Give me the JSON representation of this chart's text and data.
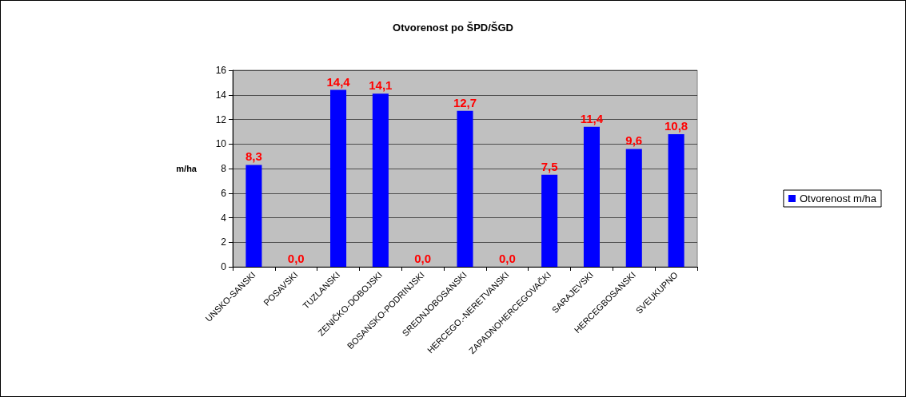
{
  "chart_data": {
    "type": "bar",
    "title": "Otvorenost po ŠPD/ŠGD",
    "ylabel": "m/ha",
    "categories": [
      "UNSKO-SANSKI",
      "POSAVSKI",
      "TUZLANSKI",
      "ZENIČKO-DOBOJSKI",
      "BOSANSKO-PODRINJSKI",
      "SREDNJOBOSANSKI",
      "HERCEGO.-NERETVANSKI",
      "ZAPADNOHERCEGOVAČKI",
      "SARAJEVSKI",
      "HERCEGBOSANSKI",
      "SVEUKUPNO"
    ],
    "series": [
      {
        "name": "Otvorenost m/ha",
        "color": "#0000ff",
        "values": [
          8.3,
          0.0,
          14.4,
          14.1,
          0.0,
          12.7,
          0.0,
          7.5,
          11.4,
          9.6,
          10.8
        ],
        "value_labels": [
          "8,3",
          "0,0",
          "14,4",
          "14,1",
          "0,0",
          "12,7",
          "0,0",
          "7,5",
          "11,4",
          "9,6",
          "10,8"
        ]
      }
    ],
    "ylim": [
      0,
      16
    ],
    "yticks": [
      0,
      2,
      4,
      6,
      8,
      10,
      12,
      14,
      16
    ],
    "grid": "y",
    "legend": "right"
  }
}
